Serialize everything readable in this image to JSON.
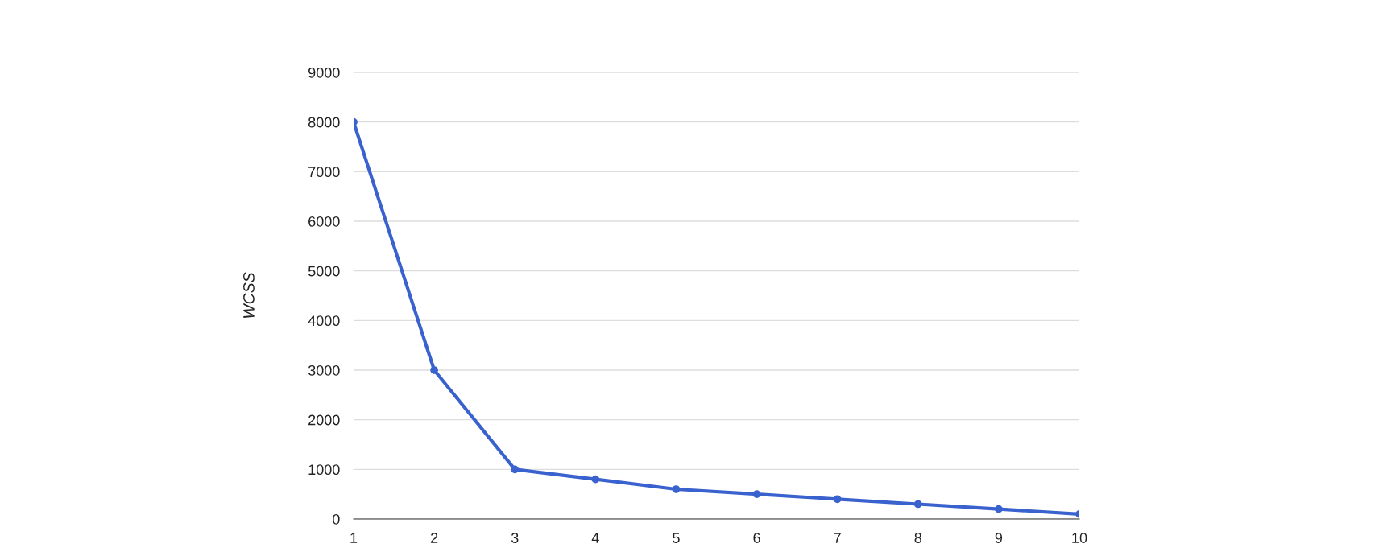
{
  "chart_data": {
    "type": "line",
    "ylabel": "WCSS",
    "x": [
      1,
      2,
      3,
      4,
      5,
      6,
      7,
      8,
      9,
      10
    ],
    "series": [
      {
        "color": "#3a62cf",
        "values": [
          8000,
          3000,
          1000,
          800,
          600,
          500,
          400,
          300,
          200,
          100
        ]
      }
    ],
    "xlim": [
      1,
      10
    ],
    "xticks": [
      1,
      2,
      3,
      4,
      5,
      6,
      7,
      8,
      9,
      10
    ],
    "ylim": [
      0,
      9000
    ],
    "yticks": [
      0,
      1000,
      2000,
      3000,
      4000,
      5000,
      6000,
      7000,
      8000,
      9000
    ],
    "grid": "y",
    "marker": "circle",
    "line_style": "solid"
  }
}
